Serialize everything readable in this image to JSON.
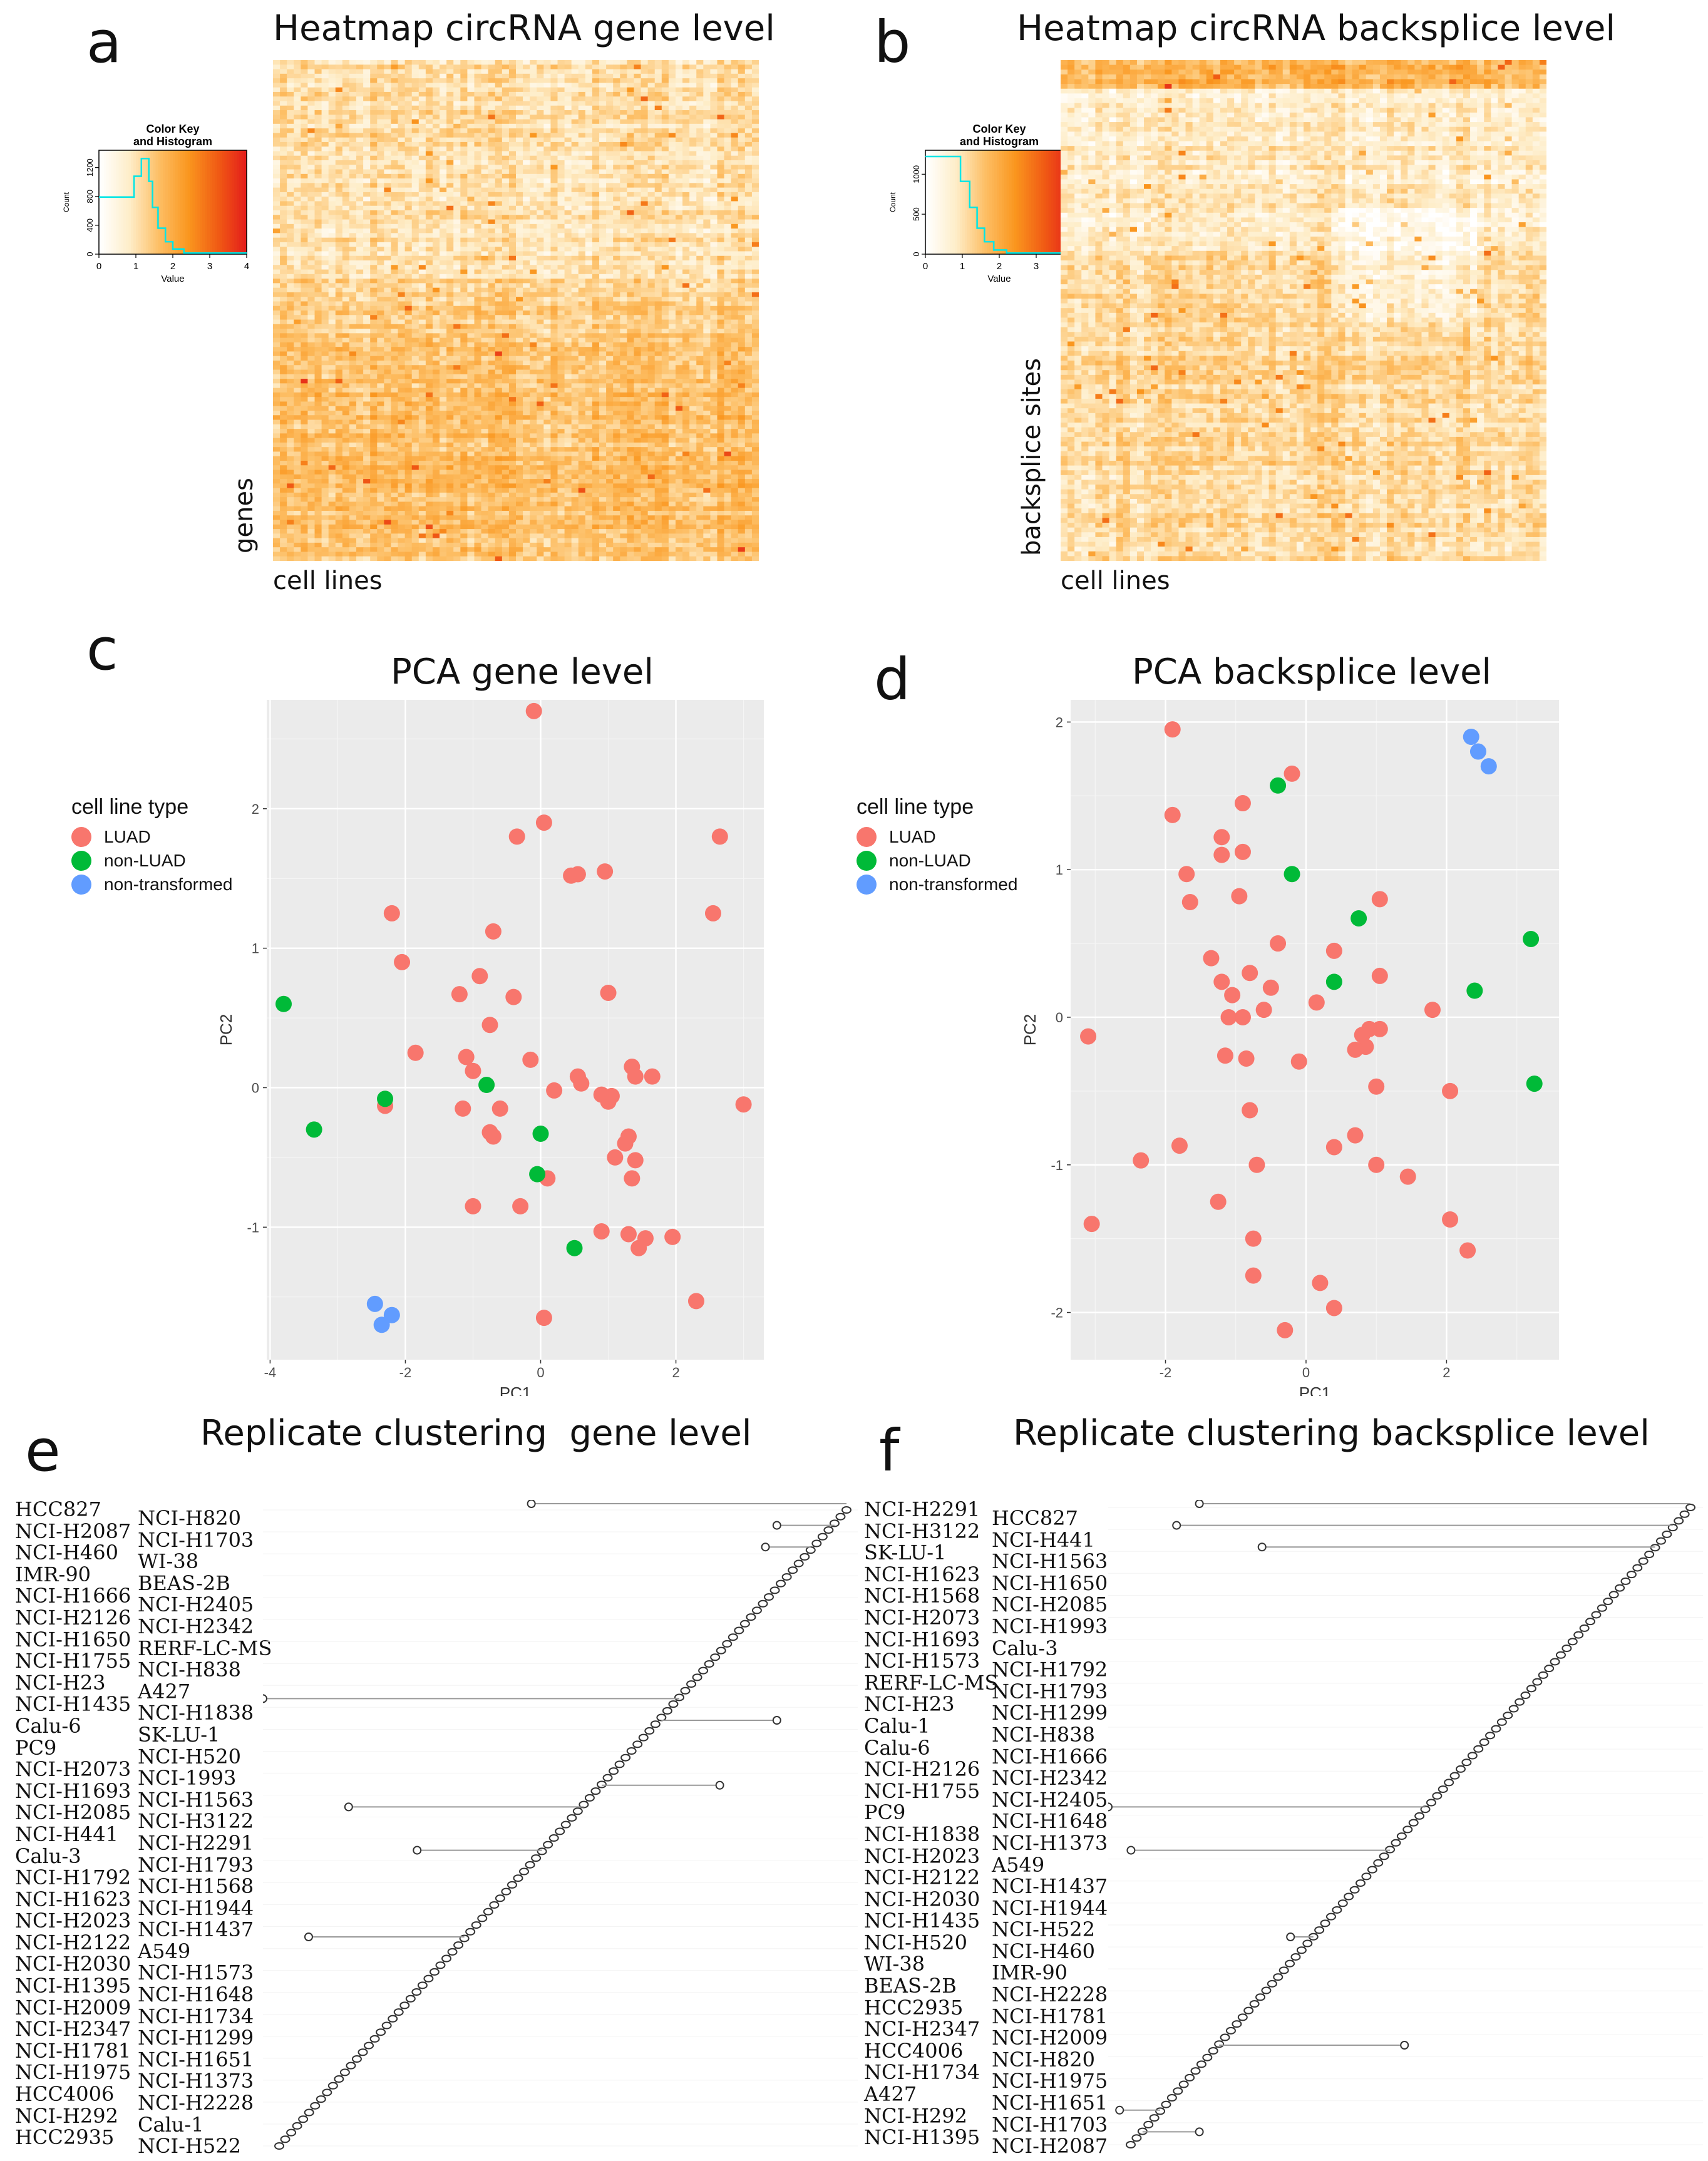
{
  "panel_labels": [
    "a",
    "b",
    "c",
    "d",
    "e",
    "f"
  ],
  "colors": {
    "luad": "#f8766d",
    "non_luad": "#00ba38",
    "non_transformed": "#619cff",
    "pca_bg": "#ebebeb",
    "heat_low": "#ffffff",
    "heat_mid": "#fdb863",
    "heat_high": "#e31a1c",
    "histogram_line": "#00e5e5"
  },
  "color_key": {
    "title_line1": "Color Key",
    "title_line2": "and Histogram",
    "xlabel": "Value",
    "ylabel": "Count",
    "x_ticks": [
      "0",
      "1",
      "2",
      "3",
      "4"
    ],
    "a_y_ticks": [
      "0",
      "400",
      "800",
      "1200"
    ],
    "b_y_ticks": [
      "0",
      "500",
      "1000"
    ]
  },
  "chart_data": [
    {
      "id": "a",
      "type": "heatmap",
      "title": "Heatmap circRNA gene level",
      "xlabel": "cell lines",
      "ylabel": "genes",
      "value_range": [
        0,
        4
      ]
    },
    {
      "id": "b",
      "type": "heatmap",
      "title": "Heatmap circRNA backsplice level",
      "xlabel": "cell lines",
      "ylabel": "backsplice sites",
      "value_range": [
        0,
        4
      ]
    },
    {
      "id": "c",
      "type": "scatter",
      "title": "PCA gene level",
      "xlabel": "PC1",
      "ylabel": "PC2",
      "xlim": [
        -4.05,
        3.3
      ],
      "ylim": [
        -1.95,
        2.78
      ],
      "x_ticks": [
        -4,
        -2,
        0,
        2
      ],
      "y_ticks": [
        -1,
        0,
        1,
        2
      ],
      "x_tick_labels": [
        "-4",
        "-2",
        "0",
        "2"
      ],
      "y_tick_labels": [
        "-1",
        "0",
        "1",
        "2"
      ],
      "legend": {
        "title": "cell line type",
        "entries": [
          "LUAD",
          "non-LUAD",
          "non-transformed"
        ]
      },
      "points": [
        {
          "x": -0.1,
          "y": 2.7,
          "group": "LUAD"
        },
        {
          "x": 0.05,
          "y": 1.9,
          "group": "LUAD"
        },
        {
          "x": -0.35,
          "y": 1.8,
          "group": "LUAD"
        },
        {
          "x": 2.65,
          "y": 1.8,
          "group": "LUAD"
        },
        {
          "x": 0.45,
          "y": 1.52,
          "group": "LUAD"
        },
        {
          "x": 0.55,
          "y": 1.53,
          "group": "LUAD"
        },
        {
          "x": 0.95,
          "y": 1.55,
          "group": "LUAD"
        },
        {
          "x": 2.55,
          "y": 1.25,
          "group": "LUAD"
        },
        {
          "x": -2.2,
          "y": 1.25,
          "group": "LUAD"
        },
        {
          "x": -0.7,
          "y": 1.12,
          "group": "LUAD"
        },
        {
          "x": -2.05,
          "y": 0.9,
          "group": "LUAD"
        },
        {
          "x": -0.9,
          "y": 0.8,
          "group": "LUAD"
        },
        {
          "x": -1.2,
          "y": 0.67,
          "group": "LUAD"
        },
        {
          "x": -0.4,
          "y": 0.65,
          "group": "LUAD"
        },
        {
          "x": 1.0,
          "y": 0.68,
          "group": "LUAD"
        },
        {
          "x": -0.75,
          "y": 0.45,
          "group": "LUAD"
        },
        {
          "x": -1.85,
          "y": 0.25,
          "group": "LUAD"
        },
        {
          "x": -1.1,
          "y": 0.22,
          "group": "LUAD"
        },
        {
          "x": -0.15,
          "y": 0.2,
          "group": "LUAD"
        },
        {
          "x": -1.0,
          "y": 0.12,
          "group": "LUAD"
        },
        {
          "x": 1.35,
          "y": 0.15,
          "group": "LUAD"
        },
        {
          "x": 0.55,
          "y": 0.08,
          "group": "LUAD"
        },
        {
          "x": 0.6,
          "y": 0.03,
          "group": "LUAD"
        },
        {
          "x": 1.4,
          "y": 0.08,
          "group": "LUAD"
        },
        {
          "x": 1.65,
          "y": 0.08,
          "group": "LUAD"
        },
        {
          "x": 0.2,
          "y": -0.02,
          "group": "LUAD"
        },
        {
          "x": 0.9,
          "y": -0.05,
          "group": "LUAD"
        },
        {
          "x": 1.05,
          "y": -0.06,
          "group": "LUAD"
        },
        {
          "x": 1.0,
          "y": -0.1,
          "group": "LUAD"
        },
        {
          "x": 3.0,
          "y": -0.12,
          "group": "LUAD"
        },
        {
          "x": -2.3,
          "y": -0.13,
          "group": "LUAD"
        },
        {
          "x": -1.15,
          "y": -0.15,
          "group": "LUAD"
        },
        {
          "x": -0.6,
          "y": -0.15,
          "group": "LUAD"
        },
        {
          "x": -0.75,
          "y": -0.32,
          "group": "LUAD"
        },
        {
          "x": -0.7,
          "y": -0.35,
          "group": "LUAD"
        },
        {
          "x": 1.3,
          "y": -0.35,
          "group": "LUAD"
        },
        {
          "x": 1.25,
          "y": -0.4,
          "group": "LUAD"
        },
        {
          "x": 1.1,
          "y": -0.5,
          "group": "LUAD"
        },
        {
          "x": 1.4,
          "y": -0.52,
          "group": "LUAD"
        },
        {
          "x": 1.35,
          "y": -0.65,
          "group": "LUAD"
        },
        {
          "x": 0.1,
          "y": -0.65,
          "group": "LUAD"
        },
        {
          "x": -1.0,
          "y": -0.85,
          "group": "LUAD"
        },
        {
          "x": -0.3,
          "y": -0.85,
          "group": "LUAD"
        },
        {
          "x": 0.9,
          "y": -1.03,
          "group": "LUAD"
        },
        {
          "x": 1.3,
          "y": -1.05,
          "group": "LUAD"
        },
        {
          "x": 1.55,
          "y": -1.08,
          "group": "LUAD"
        },
        {
          "x": 1.45,
          "y": -1.15,
          "group": "LUAD"
        },
        {
          "x": 1.95,
          "y": -1.07,
          "group": "LUAD"
        },
        {
          "x": 2.3,
          "y": -1.53,
          "group": "LUAD"
        },
        {
          "x": 0.05,
          "y": -1.65,
          "group": "LUAD"
        },
        {
          "x": -3.8,
          "y": 0.6,
          "group": "non-LUAD"
        },
        {
          "x": -2.3,
          "y": -0.08,
          "group": "non-LUAD"
        },
        {
          "x": -0.8,
          "y": 0.02,
          "group": "non-LUAD"
        },
        {
          "x": -3.35,
          "y": -0.3,
          "group": "non-LUAD"
        },
        {
          "x": 0.0,
          "y": -0.33,
          "group": "non-LUAD"
        },
        {
          "x": -0.05,
          "y": -0.62,
          "group": "non-LUAD"
        },
        {
          "x": 0.5,
          "y": -1.15,
          "group": "non-LUAD"
        },
        {
          "x": -2.45,
          "y": -1.55,
          "group": "non-transformed"
        },
        {
          "x": -2.2,
          "y": -1.63,
          "group": "non-transformed"
        },
        {
          "x": -2.35,
          "y": -1.7,
          "group": "non-transformed"
        }
      ]
    },
    {
      "id": "d",
      "type": "scatter",
      "title": "PCA backsplice level",
      "xlabel": "PC1",
      "ylabel": "PC2",
      "xlim": [
        -3.35,
        3.6
      ],
      "ylim": [
        -2.32,
        2.15
      ],
      "x_ticks": [
        -2,
        0,
        2
      ],
      "y_ticks": [
        -2,
        -1,
        0,
        1,
        2
      ],
      "x_tick_labels": [
        "-2",
        "0",
        "2"
      ],
      "y_tick_labels": [
        "-2",
        "-1",
        "0",
        "1",
        "2"
      ],
      "legend": {
        "title": "cell line type",
        "entries": [
          "LUAD",
          "non-LUAD",
          "non-transformed"
        ]
      },
      "points": [
        {
          "x": -1.9,
          "y": 1.95,
          "group": "LUAD"
        },
        {
          "x": -0.2,
          "y": 1.65,
          "group": "LUAD"
        },
        {
          "x": -1.9,
          "y": 1.37,
          "group": "LUAD"
        },
        {
          "x": -0.9,
          "y": 1.45,
          "group": "LUAD"
        },
        {
          "x": -1.2,
          "y": 1.22,
          "group": "LUAD"
        },
        {
          "x": -0.9,
          "y": 1.12,
          "group": "LUAD"
        },
        {
          "x": -1.2,
          "y": 1.1,
          "group": "LUAD"
        },
        {
          "x": -1.7,
          "y": 0.97,
          "group": "LUAD"
        },
        {
          "x": -1.65,
          "y": 0.78,
          "group": "LUAD"
        },
        {
          "x": -0.95,
          "y": 0.82,
          "group": "LUAD"
        },
        {
          "x": 1.05,
          "y": 0.8,
          "group": "LUAD"
        },
        {
          "x": -0.4,
          "y": 0.5,
          "group": "LUAD"
        },
        {
          "x": 0.4,
          "y": 0.45,
          "group": "LUAD"
        },
        {
          "x": -1.35,
          "y": 0.4,
          "group": "LUAD"
        },
        {
          "x": -0.8,
          "y": 0.3,
          "group": "LUAD"
        },
        {
          "x": 1.05,
          "y": 0.28,
          "group": "LUAD"
        },
        {
          "x": -1.2,
          "y": 0.24,
          "group": "LUAD"
        },
        {
          "x": -0.5,
          "y": 0.2,
          "group": "LUAD"
        },
        {
          "x": -1.05,
          "y": 0.15,
          "group": "LUAD"
        },
        {
          "x": 0.15,
          "y": 0.1,
          "group": "LUAD"
        },
        {
          "x": -0.6,
          "y": 0.05,
          "group": "LUAD"
        },
        {
          "x": -1.1,
          "y": 0.0,
          "group": "LUAD"
        },
        {
          "x": -0.9,
          "y": 0.0,
          "group": "LUAD"
        },
        {
          "x": 1.8,
          "y": 0.05,
          "group": "LUAD"
        },
        {
          "x": 0.9,
          "y": -0.08,
          "group": "LUAD"
        },
        {
          "x": 1.05,
          "y": -0.08,
          "group": "LUAD"
        },
        {
          "x": 0.8,
          "y": -0.12,
          "group": "LUAD"
        },
        {
          "x": 0.85,
          "y": -0.2,
          "group": "LUAD"
        },
        {
          "x": 0.7,
          "y": -0.22,
          "group": "LUAD"
        },
        {
          "x": -3.1,
          "y": -0.13,
          "group": "LUAD"
        },
        {
          "x": -1.15,
          "y": -0.26,
          "group": "LUAD"
        },
        {
          "x": -0.85,
          "y": -0.28,
          "group": "LUAD"
        },
        {
          "x": -0.1,
          "y": -0.3,
          "group": "LUAD"
        },
        {
          "x": 1.0,
          "y": -0.47,
          "group": "LUAD"
        },
        {
          "x": 2.05,
          "y": -0.5,
          "group": "LUAD"
        },
        {
          "x": -0.8,
          "y": -0.63,
          "group": "LUAD"
        },
        {
          "x": 0.7,
          "y": -0.8,
          "group": "LUAD"
        },
        {
          "x": -1.8,
          "y": -0.87,
          "group": "LUAD"
        },
        {
          "x": 0.4,
          "y": -0.88,
          "group": "LUAD"
        },
        {
          "x": -2.35,
          "y": -0.97,
          "group": "LUAD"
        },
        {
          "x": -0.7,
          "y": -1.0,
          "group": "LUAD"
        },
        {
          "x": 1.0,
          "y": -1.0,
          "group": "LUAD"
        },
        {
          "x": 1.45,
          "y": -1.08,
          "group": "LUAD"
        },
        {
          "x": -1.25,
          "y": -1.25,
          "group": "LUAD"
        },
        {
          "x": 2.05,
          "y": -1.37,
          "group": "LUAD"
        },
        {
          "x": -3.05,
          "y": -1.4,
          "group": "LUAD"
        },
        {
          "x": -0.75,
          "y": -1.5,
          "group": "LUAD"
        },
        {
          "x": 2.3,
          "y": -1.58,
          "group": "LUAD"
        },
        {
          "x": -0.75,
          "y": -1.75,
          "group": "LUAD"
        },
        {
          "x": 0.2,
          "y": -1.8,
          "group": "LUAD"
        },
        {
          "x": 0.4,
          "y": -1.97,
          "group": "LUAD"
        },
        {
          "x": -0.3,
          "y": -2.12,
          "group": "LUAD"
        },
        {
          "x": -0.4,
          "y": 1.57,
          "group": "non-LUAD"
        },
        {
          "x": -0.2,
          "y": 0.97,
          "group": "non-LUAD"
        },
        {
          "x": 0.75,
          "y": 0.67,
          "group": "non-LUAD"
        },
        {
          "x": 3.2,
          "y": 0.53,
          "group": "non-LUAD"
        },
        {
          "x": 0.4,
          "y": 0.24,
          "group": "non-LUAD"
        },
        {
          "x": 2.4,
          "y": 0.18,
          "group": "non-LUAD"
        },
        {
          "x": 3.25,
          "y": -0.45,
          "group": "non-LUAD"
        },
        {
          "x": 2.35,
          "y": 1.9,
          "group": "non-transformed"
        },
        {
          "x": 2.45,
          "y": 1.8,
          "group": "non-transformed"
        },
        {
          "x": 2.6,
          "y": 1.7,
          "group": "non-transformed"
        }
      ]
    },
    {
      "id": "e",
      "type": "dendrogram",
      "title": "Replicate clustering  gene level",
      "leaves_per_track": 48,
      "outliers": [
        {
          "row": 0,
          "x_fraction": 0.47
        },
        {
          "row": 1,
          "x_fraction": 0.9
        },
        {
          "row": 2,
          "x_fraction": 0.88
        },
        {
          "row": 9,
          "x_fraction": 0.0
        },
        {
          "row": 10,
          "x_fraction": 0.9
        },
        {
          "row": 13,
          "x_fraction": 0.8
        },
        {
          "row": 14,
          "x_fraction": 0.15
        },
        {
          "row": 16,
          "x_fraction": 0.27
        },
        {
          "row": 20,
          "x_fraction": 0.08
        }
      ]
    },
    {
      "id": "f",
      "type": "dendrogram",
      "title": "Replicate clustering backsplice level",
      "leaves_per_track": 48,
      "outliers": [
        {
          "row": 0,
          "x_fraction": 0.16
        },
        {
          "row": 1,
          "x_fraction": 0.12
        },
        {
          "row": 2,
          "x_fraction": 0.27
        },
        {
          "row": 14,
          "x_fraction": 0.0
        },
        {
          "row": 16,
          "x_fraction": 0.04
        },
        {
          "row": 20,
          "x_fraction": 0.32
        },
        {
          "row": 25,
          "x_fraction": 0.52
        },
        {
          "row": 28,
          "x_fraction": 0.02
        },
        {
          "row": 29,
          "x_fraction": 0.16
        }
      ]
    }
  ],
  "e_labels_col1": [
    "HCC827",
    "NCI-H2087",
    "NCI-H460",
    "IMR-90",
    "NCI-H1666",
    "NCI-H2126",
    "NCI-H1650",
    "NCI-H1755",
    "NCI-H23",
    "NCI-H1435",
    "Calu-6",
    "PC9",
    "NCI-H2073",
    "NCI-H1693",
    "NCI-H2085",
    "NCI-H441",
    "Calu-3",
    "NCI-H1792",
    "NCI-H1623",
    "NCI-H2023",
    "NCI-H2122",
    "NCI-H2030",
    "NCI-H1395",
    "NCI-H2009",
    "NCI-H2347",
    "NCI-H1781",
    "NCI-H1975",
    "HCC4006",
    "NCI-H292",
    "HCC2935"
  ],
  "e_labels_col2": [
    "NCI-H820",
    "NCI-H1703",
    "WI-38",
    "BEAS-2B",
    "NCI-H2405",
    "NCI-H2342",
    "RERF-LC-MS",
    "NCI-H838",
    "A427",
    "NCI-H1838",
    "SK-LU-1",
    "NCI-H520",
    "NCI-1993",
    "NCI-H1563",
    "NCI-H3122",
    "NCI-H2291",
    "NCI-H1793",
    "NCI-H1568",
    "NCI-H1944",
    "NCI-H1437",
    "A549",
    "NCI-H1573",
    "NCI-H1648",
    "NCI-H1734",
    "NCI-H1299",
    "NCI-H1651",
    "NCI-H1373",
    "NCI-H2228",
    "Calu-1",
    "NCI-H522"
  ],
  "f_labels_col1": [
    "NCI-H2291",
    "NCI-H3122",
    "SK-LU-1",
    "NCI-H1623",
    "NCI-H1568",
    "NCI-H2073",
    "NCI-H1693",
    "NCI-H1573",
    "RERF-LC-MS",
    "NCI-H23",
    "Calu-1",
    "Calu-6",
    "NCI-H2126",
    "NCI-H1755",
    "PC9",
    "NCI-H1838",
    "NCI-H2023",
    "NCI-H2122",
    "NCI-H2030",
    "NCI-H1435",
    "NCI-H520",
    "WI-38",
    "BEAS-2B",
    "HCC2935",
    "NCI-H2347",
    "HCC4006",
    "NCI-H1734",
    "A427",
    "NCI-H292",
    "NCI-H1395"
  ],
  "f_labels_col2": [
    "HCC827",
    "NCI-H441",
    "NCI-H1563",
    "NCI-H1650",
    "NCI-H2085",
    "NCI-H1993",
    "Calu-3",
    "NCI-H1792",
    "NCI-H1793",
    "NCI-H1299",
    "NCI-H838",
    "NCI-H1666",
    "NCI-H2342",
    "NCI-H2405",
    "NCI-H1648",
    "NCI-H1373",
    "A549",
    "NCI-H1437",
    "NCI-H1944",
    "NCI-H522",
    "NCI-H460",
    "IMR-90",
    "NCI-H2228",
    "NCI-H1781",
    "NCI-H2009",
    "NCI-H820",
    "NCI-H1975",
    "NCI-H1651",
    "NCI-H1703",
    "NCI-H2087"
  ]
}
